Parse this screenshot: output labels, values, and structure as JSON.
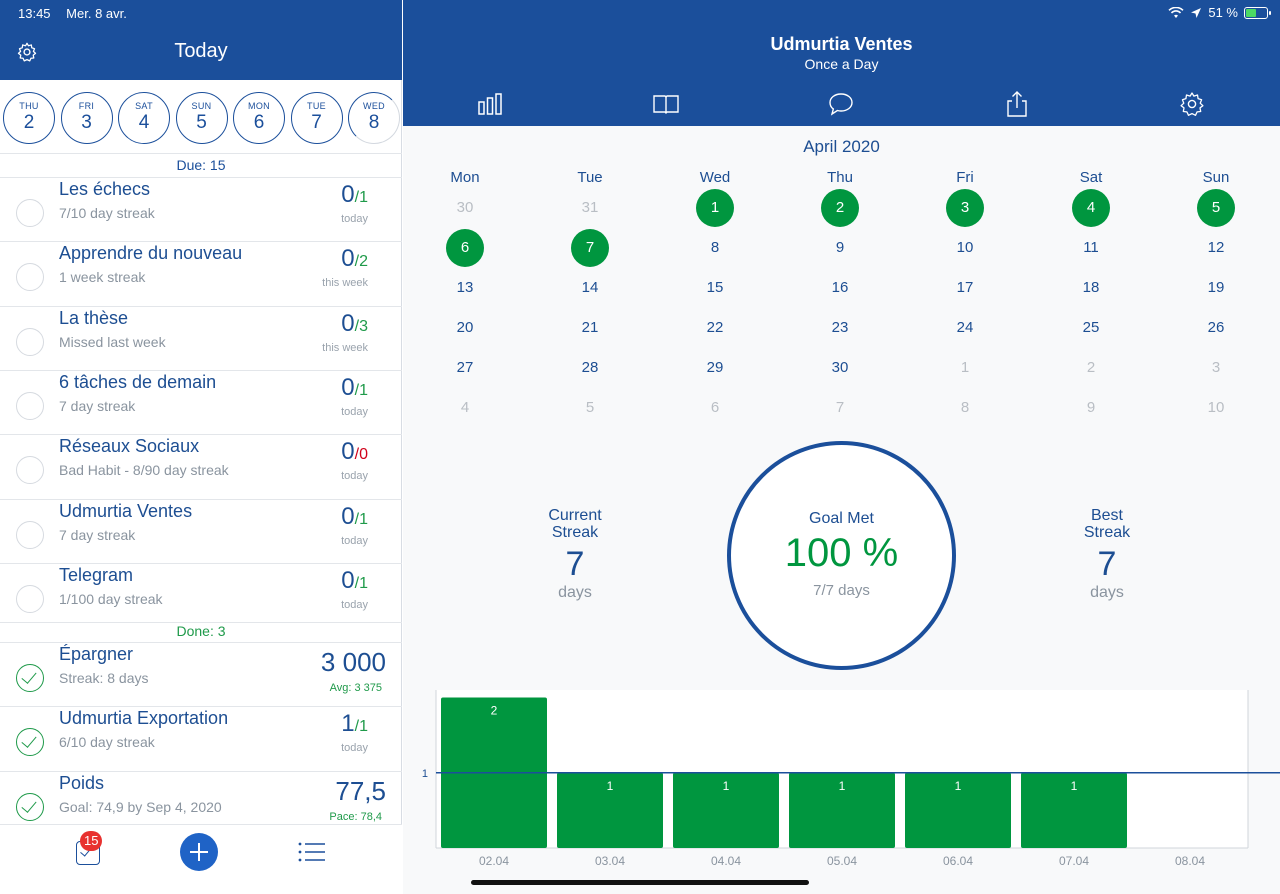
{
  "status_bar": {
    "time": "13:45",
    "date": "Mer. 8 avr.",
    "battery": "51 %",
    "battery_level": 0.51
  },
  "left": {
    "title": "Today",
    "days": [
      {
        "name": "THU",
        "num": "2"
      },
      {
        "name": "FRI",
        "num": "3"
      },
      {
        "name": "SAT",
        "num": "4"
      },
      {
        "name": "SUN",
        "num": "5"
      },
      {
        "name": "MON",
        "num": "6"
      },
      {
        "name": "TUE",
        "num": "7"
      },
      {
        "name": "WED",
        "num": "8"
      }
    ],
    "due_label": "Due: 15",
    "done_label": "Done: 3",
    "due_habits": [
      {
        "name": "Les échecs",
        "sub": "7/10 day streak",
        "value": "0",
        "target": "/1",
        "period": "today"
      },
      {
        "name": "Apprendre du nouveau",
        "sub": "1 week streak",
        "value": "0",
        "target": "/2",
        "period": "this week"
      },
      {
        "name": "La thèse",
        "sub": "Missed last week",
        "value": "0",
        "target": "/3",
        "period": "this week"
      },
      {
        "name": "6 tâches de demain",
        "sub": "7 day streak",
        "value": "0",
        "target": "/1",
        "period": "today"
      },
      {
        "name": "Réseaux Sociaux",
        "sub": "Bad Habit - 8/90 day streak",
        "value": "0",
        "target": "/0",
        "period": "today"
      },
      {
        "name": "Udmurtia Ventes",
        "sub": "7 day streak",
        "value": "0",
        "target": "/1",
        "period": "today"
      },
      {
        "name": "Telegram",
        "sub": "1/100 day streak",
        "value": "0",
        "target": "/1",
        "period": "today"
      }
    ],
    "done_habits": [
      {
        "name": "Épargner",
        "sub": "Streak: 8 days",
        "value": "3 000",
        "extra": "Avg: 3 375"
      },
      {
        "name": "Udmurtia Exportation",
        "sub": "6/10 day streak",
        "value": "1",
        "target": "/1",
        "period": "today"
      },
      {
        "name": "Poids",
        "sub": "Goal: 74,9 by Sep 4, 2020",
        "value": "77,5",
        "extra": "Pace: 78,4"
      }
    ],
    "footer": {
      "badge": "15"
    }
  },
  "right": {
    "title": "Udmurtia Ventes",
    "subtitle": "Once a Day",
    "tabs": [
      "chart-icon",
      "book-icon",
      "comment-icon",
      "share-icon",
      "gear-icon"
    ],
    "month": "April 2020",
    "weekdays": [
      "Mon",
      "Tue",
      "Wed",
      "Thu",
      "Fri",
      "Sat",
      "Sun"
    ],
    "weeks": [
      [
        [
          "30",
          "other"
        ],
        [
          "31",
          "other"
        ],
        [
          "1",
          "done"
        ],
        [
          "2",
          "done"
        ],
        [
          "3",
          "done"
        ],
        [
          "4",
          "done"
        ],
        [
          "5",
          "done"
        ]
      ],
      [
        [
          "6",
          "done"
        ],
        [
          "7",
          "done"
        ],
        [
          "8",
          ""
        ],
        [
          "9",
          ""
        ],
        [
          "10",
          ""
        ],
        [
          "11",
          ""
        ],
        [
          "12",
          ""
        ]
      ],
      [
        [
          "13",
          ""
        ],
        [
          "14",
          ""
        ],
        [
          "15",
          ""
        ],
        [
          "16",
          ""
        ],
        [
          "17",
          ""
        ],
        [
          "18",
          ""
        ],
        [
          "19",
          ""
        ]
      ],
      [
        [
          "20",
          ""
        ],
        [
          "21",
          ""
        ],
        [
          "22",
          ""
        ],
        [
          "23",
          ""
        ],
        [
          "24",
          ""
        ],
        [
          "25",
          ""
        ],
        [
          "26",
          ""
        ]
      ],
      [
        [
          "27",
          ""
        ],
        [
          "28",
          ""
        ],
        [
          "29",
          ""
        ],
        [
          "30",
          ""
        ],
        [
          "1",
          "other"
        ],
        [
          "2",
          "other"
        ],
        [
          "3",
          "other"
        ]
      ],
      [
        [
          "4",
          "other"
        ],
        [
          "5",
          "other"
        ],
        [
          "6",
          "other"
        ],
        [
          "7",
          "other"
        ],
        [
          "8",
          "other"
        ],
        [
          "9",
          "other"
        ],
        [
          "10",
          "other"
        ]
      ]
    ],
    "current_streak": {
      "label_1": "Current",
      "label_2": "Streak",
      "value": "7",
      "unit": "days"
    },
    "best_streak": {
      "label_1": "Best",
      "label_2": "Streak",
      "value": "7",
      "unit": "days"
    },
    "goal": {
      "label": "Goal Met",
      "percent": "100 %",
      "days": "7/7 days"
    }
  },
  "chart_data": {
    "type": "bar",
    "categories": [
      "02.04",
      "03.04",
      "04.04",
      "05.04",
      "06.04",
      "07.04",
      "08.04"
    ],
    "values": [
      2,
      1,
      1,
      1,
      1,
      1,
      0
    ],
    "value_labels": [
      "2",
      "1",
      "1",
      "1",
      "1",
      "1",
      ""
    ],
    "ylim": [
      0,
      2.1
    ],
    "reference_line": 1,
    "reference_label": "1",
    "bar_color": "#00963f",
    "line_color": "#1b4f9b"
  }
}
